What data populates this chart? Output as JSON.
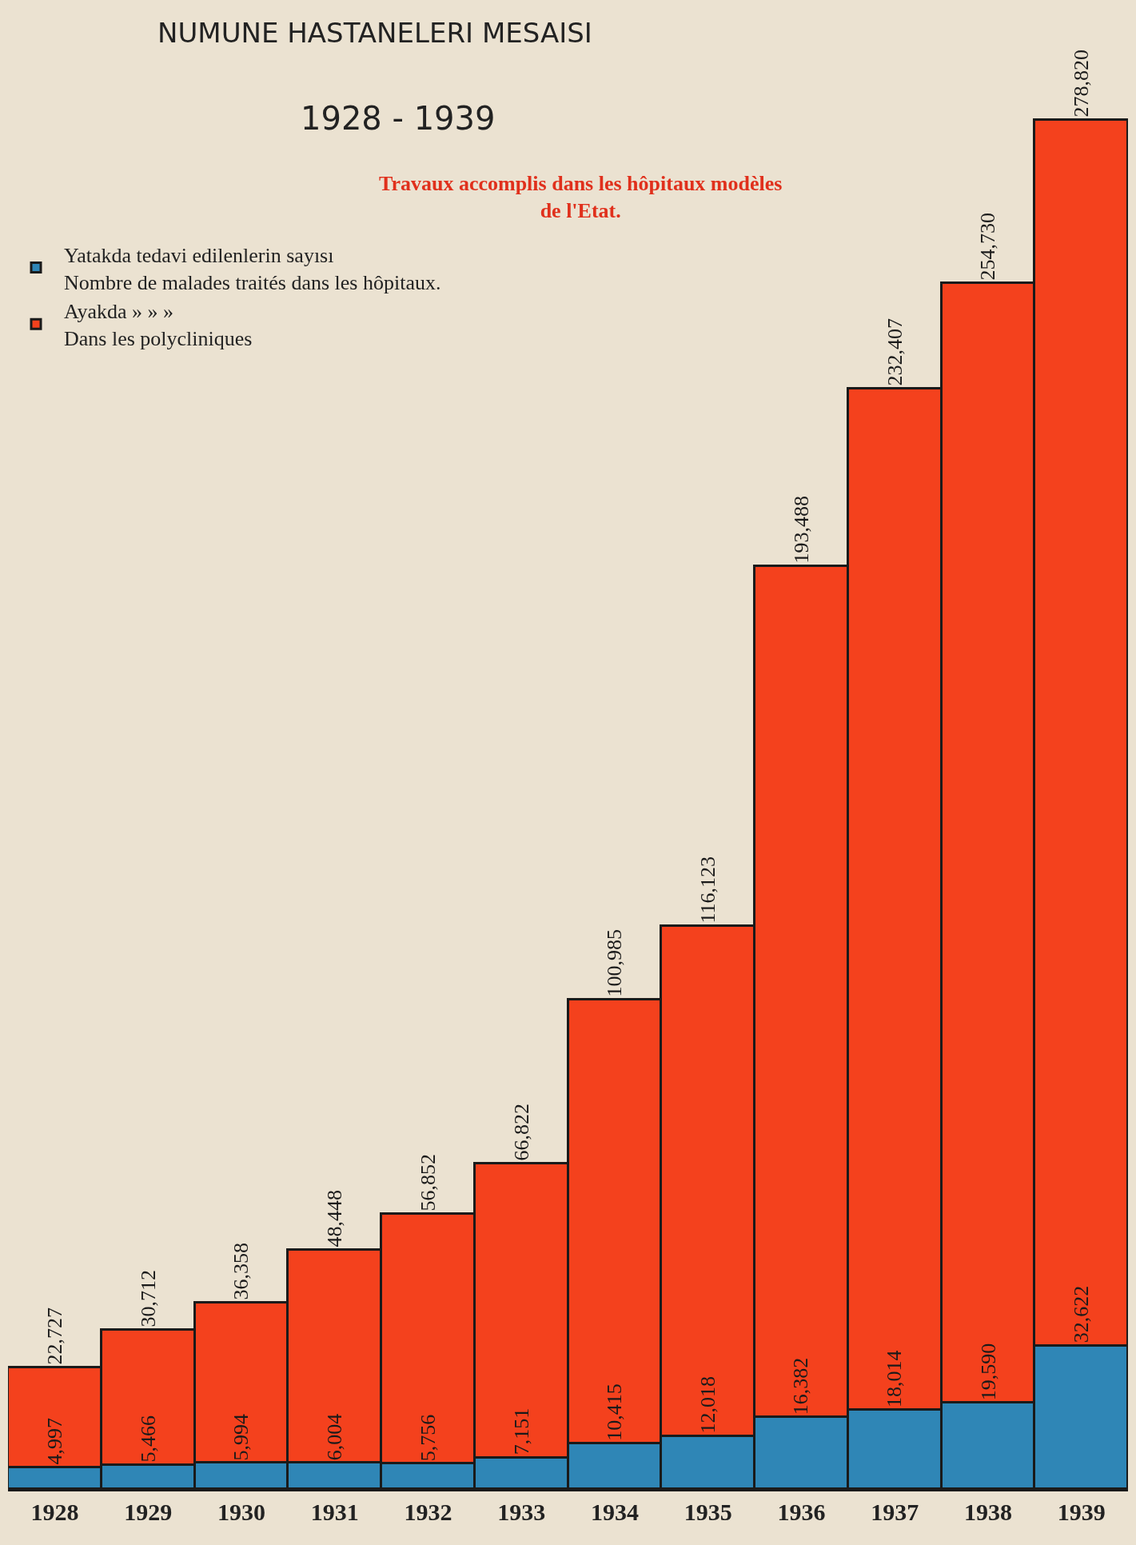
{
  "chart_data": {
    "type": "bar",
    "title": "NUMUNE HASTANELERI MESAISI",
    "subtitle": "1928 - 1939",
    "annotations": [
      "Travaux accomplis dans les hôpitaux modèles\nde l'Etat."
    ],
    "categories": [
      "1928",
      "1929",
      "1930",
      "1931",
      "1932",
      "1933",
      "1934",
      "1935",
      "1936",
      "1937",
      "1938",
      "1939"
    ],
    "stacked": true,
    "legend": "top left",
    "tick_labels": "x",
    "grid": false,
    "series": [
      {
        "name": "Yatakda tedavi edilenlerin sayısı\nNombre de malades traités dans les hôpitaux.",
        "color": "#2f86b6",
        "values": [
          4997,
          5466,
          5994,
          6004,
          5756,
          7151,
          10415,
          12018,
          16382,
          18014,
          19590,
          32622
        ],
        "value_labels": [
          "4,997",
          "5,466",
          "5,994",
          "6,004",
          "5,756",
          "7,151",
          "10,415",
          "12,018",
          "16,382",
          "18,014",
          "19,590",
          "32,622"
        ]
      },
      {
        "name": "Ayakda » » »\nDans les polycliniques",
        "color": "#f4411d",
        "values": [
          22727,
          30712,
          36358,
          48448,
          56852,
          66822,
          100985,
          116123,
          193488,
          232407,
          254730,
          278820
        ],
        "value_labels": [
          "22,727",
          "30,712",
          "36,358",
          "48,448",
          "56,852",
          "66,822",
          "100,985",
          "116,123",
          "193,488",
          "232,407",
          "254,730",
          "278,820"
        ]
      }
    ]
  }
}
